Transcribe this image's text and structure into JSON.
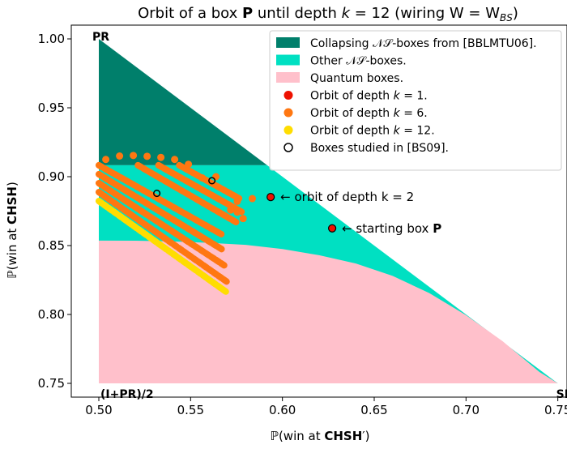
{
  "chart_data": {
    "type": "scatter",
    "title_parts": [
      "Orbit of a box ",
      "P",
      " until depth ",
      "k",
      " = 12 (wiring W = W",
      "BS",
      ")"
    ],
    "xlabel_parts": [
      "ℙ(win at ",
      "CHSH",
      "′)"
    ],
    "ylabel_parts": [
      "ℙ(win at ",
      "CHSH",
      ")"
    ],
    "xlim": [
      0.485,
      0.755
    ],
    "ylim": [
      0.74,
      1.01
    ],
    "x_ticks": [
      0.5,
      0.55,
      0.6,
      0.65,
      0.7,
      0.75
    ],
    "x_tick_labels": [
      "0.50",
      "0.55",
      "0.60",
      "0.65",
      "0.70",
      "0.75"
    ],
    "y_ticks": [
      0.75,
      0.8,
      0.85,
      0.9,
      0.95,
      1.0
    ],
    "y_tick_labels": [
      "0.75",
      "0.80",
      "0.85",
      "0.90",
      "0.95",
      "1.00"
    ],
    "grid": false,
    "legend_position": "top-right",
    "corner_labels": [
      {
        "text": "PR",
        "x": 0.5,
        "y": 1.0,
        "anchor": "start",
        "dy": -0.0045
      },
      {
        "text": "(I+PR)/2",
        "x": 0.5,
        "y": 0.75,
        "anchor": "start",
        "dy": -0.0045
      },
      {
        "text": "SR",
        "x": 0.75,
        "y": 0.75,
        "anchor": "start",
        "dy": -0.0045
      }
    ],
    "regions": [
      {
        "name": "Collapsing 𝒩𝒮-boxes from [BBLMTU06].",
        "color": "#007f6b",
        "polygon": [
          [
            0.5,
            1.0
          ],
          [
            0.5,
            0.9083
          ],
          [
            0.5917,
            0.9083
          ]
        ]
      },
      {
        "name": "Other 𝒩𝒮-boxes.",
        "color": "#00e0c2",
        "polygon": [
          [
            0.5,
            0.9083
          ],
          [
            0.5917,
            0.9083
          ],
          [
            0.75,
            0.75
          ],
          [
            0.5,
            0.75
          ]
        ]
      },
      {
        "name": "Quantum boxes.",
        "color": "#ffc0cb",
        "curve": [
          [
            0.5,
            0.8536
          ],
          [
            0.52,
            0.8535
          ],
          [
            0.54,
            0.853
          ],
          [
            0.56,
            0.852
          ],
          [
            0.58,
            0.8505
          ],
          [
            0.6,
            0.8475
          ],
          [
            0.62,
            0.843
          ],
          [
            0.64,
            0.837
          ],
          [
            0.66,
            0.828
          ],
          [
            0.68,
            0.8155
          ],
          [
            0.7,
            0.7995
          ],
          [
            0.72,
            0.7805
          ],
          [
            0.74,
            0.7582
          ],
          [
            0.75,
            0.75
          ]
        ]
      }
    ],
    "series": [
      {
        "name": "Orbit of depth k = 1.",
        "color": "#ee1100",
        "points": [
          [
            0.6271,
            0.8625
          ],
          [
            0.5936,
            0.8852
          ]
        ]
      },
      {
        "name": "Orbit of depth k = 6.",
        "color": "#ff7711",
        "points": [
          [
            0.5038,
            0.9125
          ],
          [
            0.5113,
            0.915
          ],
          [
            0.5188,
            0.9154
          ],
          [
            0.5263,
            0.9148
          ],
          [
            0.5338,
            0.914
          ],
          [
            0.5413,
            0.9125
          ],
          [
            0.5488,
            0.909
          ],
          [
            0.5563,
            0.8991
          ],
          [
            0.5638,
            0.9
          ],
          [
            0.5754,
            0.8821
          ],
          [
            0.5836,
            0.8841
          ],
          [
            0.5718,
            0.8758
          ],
          [
            0.5754,
            0.8742
          ],
          [
            0.5786,
            0.8696
          ]
        ]
      },
      {
        "name": "Orbit of depth k = 12.",
        "color": "#ffdd00",
        "points": []
      }
    ],
    "studied_boxes": {
      "name": "Boxes studied in [BS09].",
      "points": [
        [
          0.5316,
          0.8879
        ],
        [
          0.5616,
          0.8971
        ]
      ]
    },
    "orbit_k6_bands": [
      {
        "x0": 0.5,
        "y0": 0.9083,
        "x1": 0.5667,
        "y1": 0.8583
      },
      {
        "x0": 0.5,
        "y0": 0.9018,
        "x1": 0.5678,
        "y1": 0.8467
      },
      {
        "x0": 0.5,
        "y0": 0.8953,
        "x1": 0.5688,
        "y1": 0.8352
      },
      {
        "x0": 0.5,
        "y0": 0.8888,
        "x1": 0.5699,
        "y1": 0.8236
      },
      {
        "x0": 0.5213,
        "y0": 0.9083,
        "x1": 0.5748,
        "y1": 0.867
      },
      {
        "x0": 0.5325,
        "y0": 0.9083,
        "x1": 0.5779,
        "y1": 0.8744
      },
      {
        "x0": 0.5438,
        "y0": 0.9083,
        "x1": 0.5764,
        "y1": 0.8842
      }
    ],
    "orbit_k12_bands": [
      {
        "x0": 0.5,
        "y0": 0.8823,
        "x1": 0.5699,
        "y1": 0.8159
      }
    ],
    "annotations": [
      {
        "text": "← orbit of depth k = 2",
        "x": 0.5936,
        "y": 0.8852
      },
      {
        "text": "← starting box ",
        "bold": "P",
        "x": 0.6271,
        "y": 0.8625
      }
    ]
  }
}
